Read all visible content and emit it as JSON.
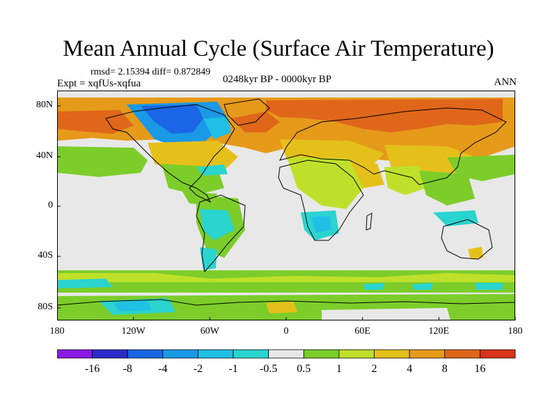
{
  "title": "Mean Annual Cycle (Surface Air Temperature)",
  "stats": "rmsd= 2.15394 diff= 0.872849",
  "experiment": "Expt = xqfUs-xqfua",
  "period": "0248kyr BP - 0000kyr BP",
  "season": "ANN",
  "y_ticks": [
    "80N",
    "40N",
    "0",
    "40S",
    "80S"
  ],
  "x_ticks": [
    "180",
    "120W",
    "60W",
    "0",
    "60E",
    "120E",
    "180"
  ],
  "colorbar": {
    "labels": [
      "-16",
      "-8",
      "-4",
      "-2",
      "-1",
      "-0.5",
      "0.5",
      "1",
      "2",
      "4",
      "8",
      "16"
    ],
    "colors": [
      "#8a1ae6",
      "#2b2bcc",
      "#1a66e6",
      "#1a99e6",
      "#1fbfe6",
      "#2ad4cf",
      "#e8e8e8",
      "#7ccd2a",
      "#bfe02a",
      "#e6c01a",
      "#e69a1a",
      "#e0661a",
      "#d9331a"
    ]
  },
  "palette": {
    "neutral": "#e8e8e8",
    "light_green": "#7ccd2a",
    "yellow_green": "#bfe02a",
    "amber": "#e6c01a",
    "orange": "#e69a1a",
    "dark_orange": "#e0661a",
    "cyan": "#2ad4cf",
    "light_blue": "#1fbfe6",
    "blue": "#1a99e6",
    "deep_blue": "#1a66e6"
  }
}
